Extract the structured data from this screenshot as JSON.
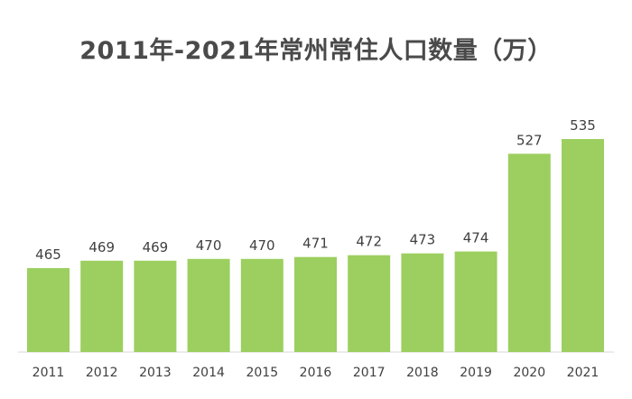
{
  "chart_data": {
    "type": "bar",
    "title": "2011年-2021年常州常住人口数量（万）",
    "categories": [
      "2011",
      "2012",
      "2013",
      "2014",
      "2015",
      "2016",
      "2017",
      "2018",
      "2019",
      "2020",
      "2021"
    ],
    "values": [
      465,
      469,
      469,
      470,
      470,
      471,
      472,
      473,
      474,
      527,
      535
    ],
    "xlabel": "",
    "ylabel": "",
    "grid": false,
    "legend": "none",
    "bar_color": "#9ccf5f"
  }
}
